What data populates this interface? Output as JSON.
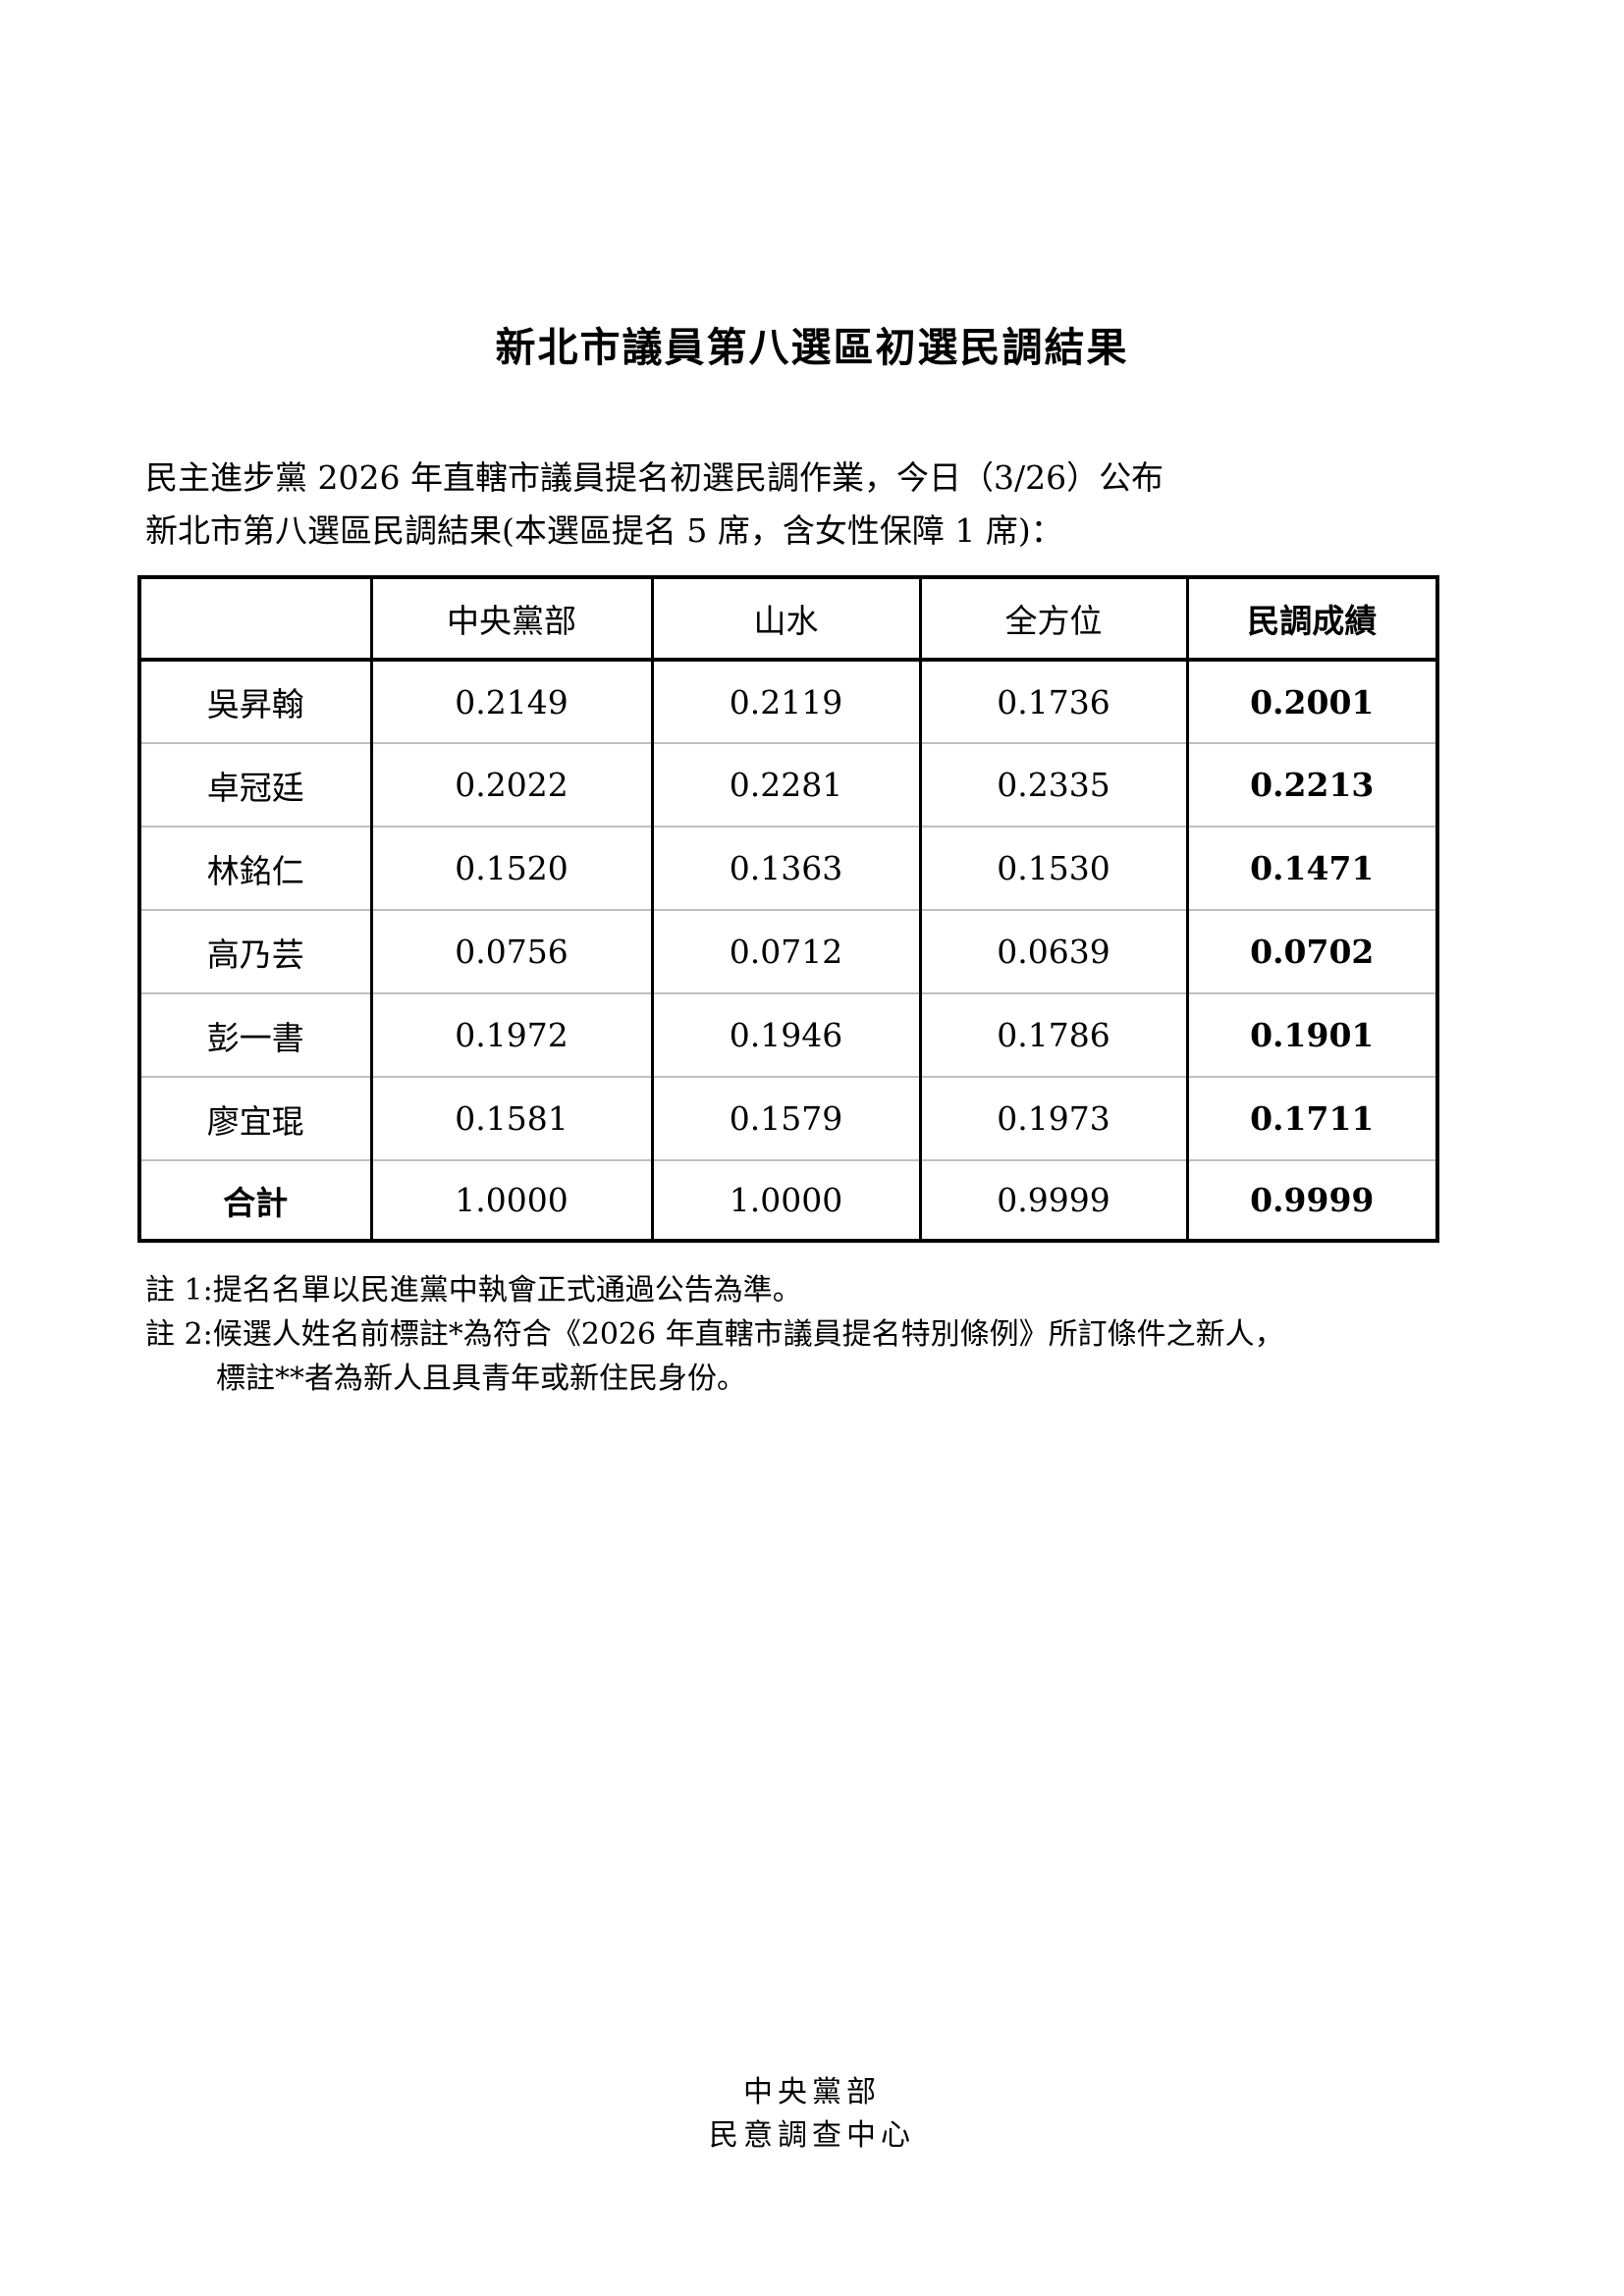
{
  "doc": {
    "title": "新北市議員第八選區初選民調結果",
    "intro_line1": "民主進步黨 2026 年直轄市議員提名初選民調作業，今日（3/26）公布",
    "intro_line2": "新北市第八選區民調結果(本選區提名 5 席，含女性保障 1 席)：",
    "notes": {
      "line1": "註 1:提名名單以民進黨中執會正式通過公告為準。",
      "line2": "註 2:候選人姓名前標註*為符合《2026 年直轄市議員提名特別條例》所訂條件之新人，",
      "line3": "標註**者為新人且具青年或新住民身份。"
    },
    "footer_line1": "中央黨部",
    "footer_line2": "民意調查中心"
  },
  "table": {
    "headers": [
      "",
      "中央黨部",
      "山水",
      "全方位",
      "民調成績"
    ],
    "rows": [
      {
        "name": "吳昇翰",
        "values": [
          "0.2149",
          "0.2119",
          "0.1736",
          "0.2001"
        ]
      },
      {
        "name": "卓冠廷",
        "values": [
          "0.2022",
          "0.2281",
          "0.2335",
          "0.2213"
        ]
      },
      {
        "name": "林銘仁",
        "values": [
          "0.1520",
          "0.1363",
          "0.1530",
          "0.1471"
        ]
      },
      {
        "name": "高乃芸",
        "values": [
          "0.0756",
          "0.0712",
          "0.0639",
          "0.0702"
        ]
      },
      {
        "name": "彭一書",
        "values": [
          "0.1972",
          "0.1946",
          "0.1786",
          "0.1901"
        ]
      },
      {
        "name": "廖宜琨",
        "values": [
          "0.1581",
          "0.1579",
          "0.1973",
          "0.1711"
        ]
      }
    ],
    "total": {
      "name": "合計",
      "values": [
        "1.0000",
        "1.0000",
        "0.9999",
        "0.9999"
      ]
    }
  },
  "colors": {
    "text": "#000000",
    "table_border": "#000000",
    "row_separator": "#bfbfbf",
    "background": "#ffffff"
  }
}
